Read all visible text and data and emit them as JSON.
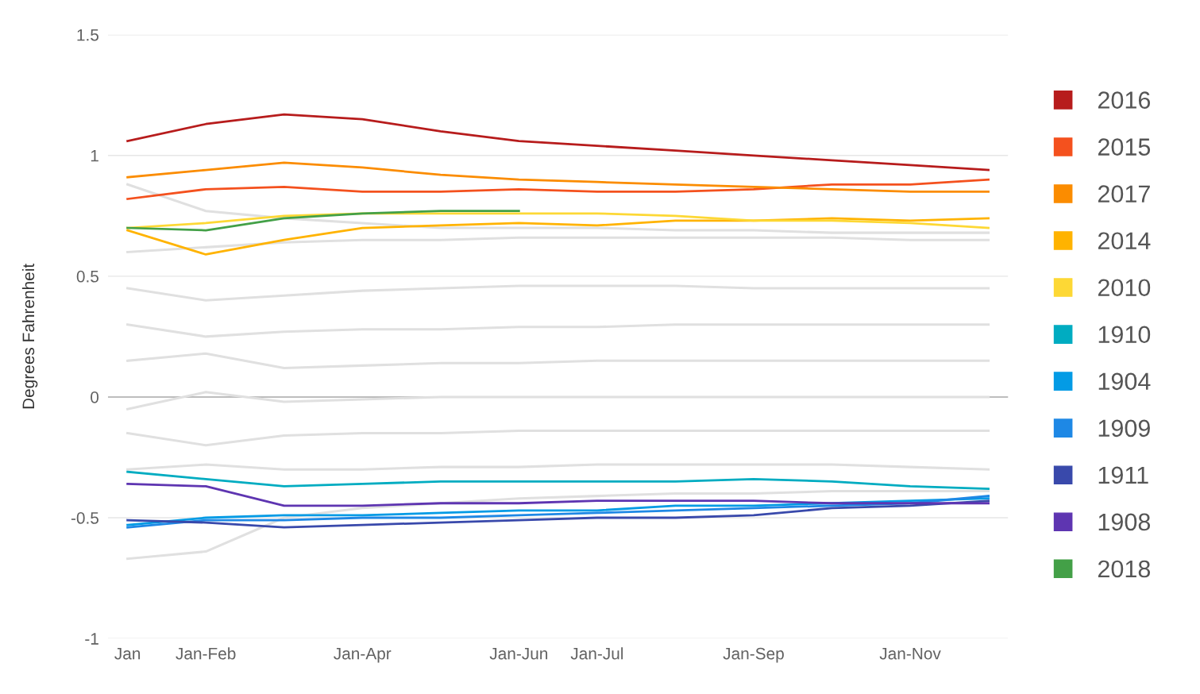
{
  "chart_data": {
    "type": "line",
    "ylabel": "Degrees Fahrenheit",
    "categories": [
      "Jan",
      "Jan-Feb",
      null,
      "Jan-Apr",
      null,
      "Jan-Jun",
      "Jan-Jul",
      null,
      "Jan-Sep",
      null,
      "Jan-Nov",
      null
    ],
    "ylim": [
      -1,
      1.5
    ],
    "yticks": [
      {
        "value": -1,
        "label": "-1"
      },
      {
        "value": -0.5,
        "label": "-0.5"
      },
      0,
      0.5,
      1,
      1.5
    ],
    "grid": "y",
    "legend": "right",
    "marker": "none",
    "line_style": "solid",
    "ref_lines": [
      {
        "axis": "y",
        "value": 0,
        "color": "#bdbdbd"
      }
    ],
    "series": [
      {
        "color": "#e0e0e0",
        "values": [
          0.88,
          0.77,
          0.74,
          0.72,
          0.7,
          0.7,
          0.7,
          0.69,
          0.69,
          0.68,
          0.68,
          0.68
        ]
      },
      {
        "color": "#e0e0e0",
        "values": [
          -0.67,
          -0.64,
          -0.5,
          -0.46,
          -0.44,
          -0.42,
          -0.41,
          -0.4,
          -0.4,
          -0.39,
          -0.39,
          -0.39
        ]
      },
      {
        "color": "#e0e0e0",
        "values": [
          0.6,
          0.62,
          0.64,
          0.65,
          0.65,
          0.66,
          0.66,
          0.66,
          0.66,
          0.66,
          0.65,
          0.65
        ]
      },
      {
        "color": "#e0e0e0",
        "values": [
          0.45,
          0.4,
          0.42,
          0.44,
          0.45,
          0.46,
          0.46,
          0.46,
          0.45,
          0.45,
          0.45,
          0.45
        ]
      },
      {
        "color": "#e0e0e0",
        "values": [
          0.3,
          0.25,
          0.27,
          0.28,
          0.28,
          0.29,
          0.29,
          0.3,
          0.3,
          0.3,
          0.3,
          0.3
        ]
      },
      {
        "color": "#e0e0e0",
        "values": [
          0.15,
          0.18,
          0.12,
          0.13,
          0.14,
          0.14,
          0.15,
          0.15,
          0.15,
          0.15,
          0.15,
          0.15
        ]
      },
      {
        "color": "#e0e0e0",
        "values": [
          -0.05,
          0.02,
          -0.02,
          -0.01,
          0.0,
          0.0,
          0.0,
          0.0,
          0.0,
          0.0,
          0.0,
          0.0
        ]
      },
      {
        "color": "#e0e0e0",
        "values": [
          -0.15,
          -0.2,
          -0.16,
          -0.15,
          -0.15,
          -0.14,
          -0.14,
          -0.14,
          -0.14,
          -0.14,
          -0.14,
          -0.14
        ]
      },
      {
        "color": "#e0e0e0",
        "values": [
          -0.3,
          -0.28,
          -0.3,
          -0.3,
          -0.29,
          -0.29,
          -0.28,
          -0.28,
          -0.28,
          -0.28,
          -0.29,
          -0.3
        ]
      },
      {
        "name": "2016",
        "color": "#b71c1c",
        "values": [
          1.06,
          1.13,
          1.17,
          1.15,
          1.1,
          1.06,
          1.04,
          1.02,
          1.0,
          0.98,
          0.96,
          0.94
        ]
      },
      {
        "name": "2015",
        "color": "#f4511e",
        "values": [
          0.82,
          0.86,
          0.87,
          0.85,
          0.85,
          0.86,
          0.85,
          0.85,
          0.86,
          0.88,
          0.88,
          0.9
        ]
      },
      {
        "name": "2017",
        "color": "#fb8c00",
        "values": [
          0.91,
          0.94,
          0.97,
          0.95,
          0.92,
          0.9,
          0.89,
          0.88,
          0.87,
          0.86,
          0.85,
          0.85
        ]
      },
      {
        "name": "2014",
        "color": "#ffb300",
        "values": [
          0.69,
          0.59,
          0.65,
          0.7,
          0.71,
          0.72,
          0.71,
          0.73,
          0.73,
          0.74,
          0.73,
          0.74
        ]
      },
      {
        "name": "2010",
        "color": "#fdd835",
        "values": [
          0.7,
          0.72,
          0.75,
          0.76,
          0.76,
          0.76,
          0.76,
          0.75,
          0.73,
          0.73,
          0.72,
          0.7
        ]
      },
      {
        "name": "1910",
        "color": "#00acc1",
        "values": [
          -0.31,
          -0.34,
          -0.37,
          -0.36,
          -0.35,
          -0.35,
          -0.35,
          -0.35,
          -0.34,
          -0.35,
          -0.37,
          -0.38
        ]
      },
      {
        "name": "1904",
        "color": "#039be5",
        "values": [
          -0.53,
          -0.5,
          -0.49,
          -0.49,
          -0.48,
          -0.47,
          -0.47,
          -0.45,
          -0.45,
          -0.44,
          -0.43,
          -0.42
        ]
      },
      {
        "name": "1909",
        "color": "#1e88e5",
        "values": [
          -0.54,
          -0.51,
          -0.51,
          -0.5,
          -0.5,
          -0.49,
          -0.48,
          -0.47,
          -0.46,
          -0.45,
          -0.44,
          -0.41
        ]
      },
      {
        "name": "1911",
        "color": "#3949ab",
        "values": [
          -0.51,
          -0.52,
          -0.54,
          -0.53,
          -0.52,
          -0.51,
          -0.5,
          -0.5,
          -0.49,
          -0.46,
          -0.45,
          -0.43
        ]
      },
      {
        "name": "1908",
        "color": "#5e35b1",
        "values": [
          -0.36,
          -0.37,
          -0.45,
          -0.45,
          -0.44,
          -0.44,
          -0.43,
          -0.43,
          -0.43,
          -0.44,
          -0.44,
          -0.44
        ]
      },
      {
        "name": "2018",
        "color": "#43a047",
        "values": [
          0.7,
          0.69,
          0.74,
          0.76,
          0.77,
          0.77,
          null,
          null,
          null,
          null,
          null,
          null
        ]
      }
    ]
  }
}
